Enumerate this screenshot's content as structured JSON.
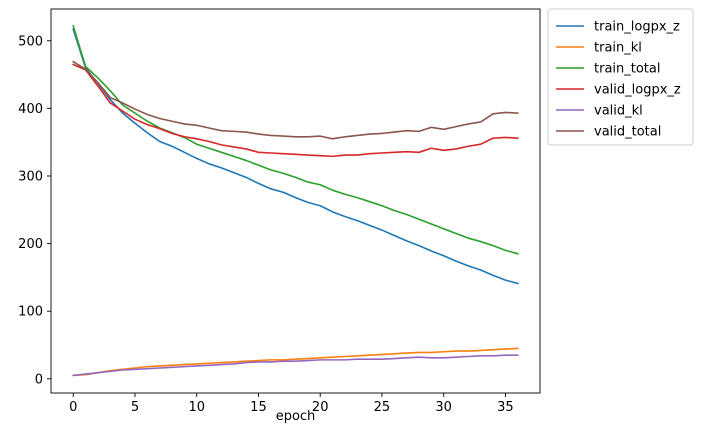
{
  "chart_data": {
    "type": "line",
    "title": "",
    "xlabel": "epoch",
    "ylabel": "",
    "xlim": [
      -1.8,
      37.8
    ],
    "ylim": [
      -21,
      547
    ],
    "xticks": [
      0,
      5,
      10,
      15,
      20,
      25,
      30,
      35
    ],
    "yticks": [
      0,
      100,
      200,
      300,
      400,
      500
    ],
    "grid": false,
    "legend_position": "outside-right-top",
    "x": [
      0,
      1,
      2,
      3,
      4,
      5,
      6,
      7,
      8,
      9,
      10,
      11,
      12,
      13,
      14,
      15,
      16,
      17,
      18,
      19,
      20,
      21,
      22,
      23,
      24,
      25,
      26,
      27,
      28,
      29,
      30,
      31,
      32,
      33,
      34,
      35,
      36
    ],
    "series": [
      {
        "name": "train_logpx_z",
        "color": "#1f77b4",
        "values": [
          517,
          460,
          437,
          413,
          393,
          378,
          364,
          351,
          344,
          335,
          326,
          318,
          312,
          305,
          298,
          289,
          281,
          276,
          268,
          261,
          256,
          247,
          240,
          234,
          227,
          220,
          212,
          204,
          197,
          189,
          182,
          174,
          167,
          161,
          153,
          146,
          141
        ]
      },
      {
        "name": "train_kl",
        "color": "#ff7f0e",
        "values": [
          5,
          6,
          9,
          12,
          14,
          16,
          18,
          19,
          20,
          21,
          22,
          23,
          24,
          25,
          26,
          27,
          28,
          28,
          29,
          30,
          31,
          32,
          33,
          34,
          35,
          36,
          37,
          38,
          39,
          39,
          40,
          41,
          41,
          42,
          43,
          44,
          45
        ]
      },
      {
        "name": "train_total",
        "color": "#2ca02c",
        "values": [
          522,
          462,
          445,
          426,
          405,
          393,
          381,
          371,
          364,
          357,
          347,
          341,
          335,
          329,
          323,
          316,
          309,
          304,
          298,
          291,
          287,
          279,
          273,
          268,
          262,
          256,
          249,
          243,
          236,
          229,
          222,
          215,
          208,
          203,
          197,
          190,
          185
        ]
      },
      {
        "name": "valid_logpx_z",
        "color": "#d62728",
        "values": [
          465,
          457,
          433,
          408,
          396,
          384,
          376,
          370,
          363,
          358,
          355,
          351,
          346,
          343,
          340,
          335,
          334,
          333,
          332,
          331,
          330,
          329,
          331,
          331,
          333,
          334,
          335,
          336,
          335,
          341,
          338,
          340,
          344,
          347,
          356,
          357,
          356
        ]
      },
      {
        "name": "valid_kl",
        "color": "#9467bd",
        "values": [
          5,
          7,
          9,
          11,
          13,
          14,
          15,
          16,
          17,
          18,
          19,
          20,
          21,
          22,
          24,
          25,
          25,
          26,
          26,
          27,
          28,
          28,
          28,
          29,
          29,
          29,
          30,
          31,
          32,
          31,
          31,
          32,
          33,
          34,
          34,
          35,
          35
        ]
      },
      {
        "name": "valid_total",
        "color": "#8c564b",
        "values": [
          469,
          458,
          438,
          416,
          408,
          399,
          391,
          385,
          381,
          377,
          375,
          371,
          367,
          366,
          365,
          362,
          360,
          359,
          358,
          358,
          359,
          355,
          358,
          360,
          362,
          363,
          365,
          367,
          366,
          372,
          369,
          373,
          377,
          380,
          392,
          394,
          393
        ]
      }
    ]
  }
}
